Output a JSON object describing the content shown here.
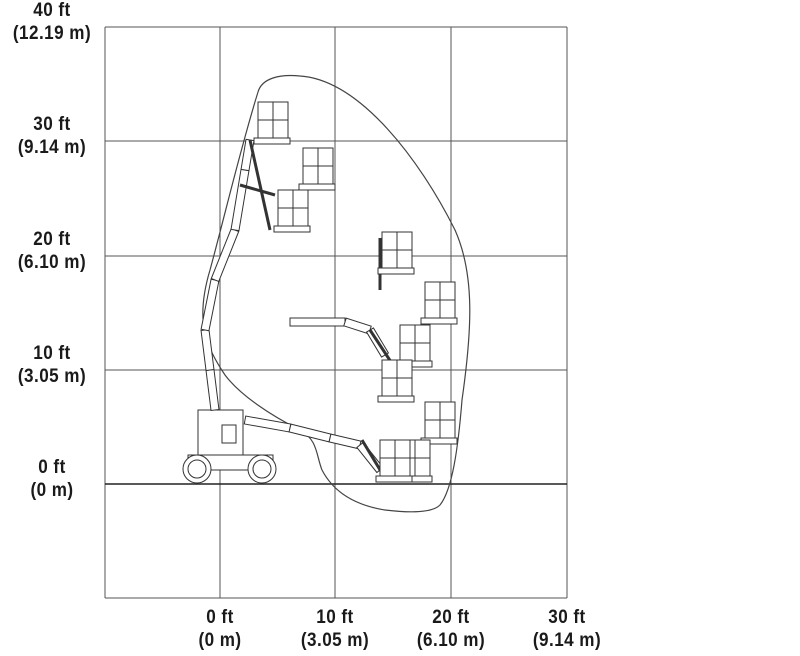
{
  "diagram": {
    "y_axis_labels": [
      {
        "ft": "40 ft",
        "m": "(12.19 m)"
      },
      {
        "ft": "30 ft",
        "m": "(9.14 m)"
      },
      {
        "ft": "20 ft",
        "m": "(6.10 m)"
      },
      {
        "ft": "10 ft",
        "m": "(3.05 m)"
      },
      {
        "ft": "0 ft",
        "m": "(0 m)"
      }
    ],
    "x_axis_labels": [
      {
        "ft": "0 ft",
        "m": "(0 m)"
      },
      {
        "ft": "10 ft",
        "m": "(3.05 m)"
      },
      {
        "ft": "20 ft",
        "m": "(6.10 m)"
      },
      {
        "ft": "30 ft",
        "m": "(9.14 m)"
      }
    ],
    "line_color": "#333333"
  }
}
